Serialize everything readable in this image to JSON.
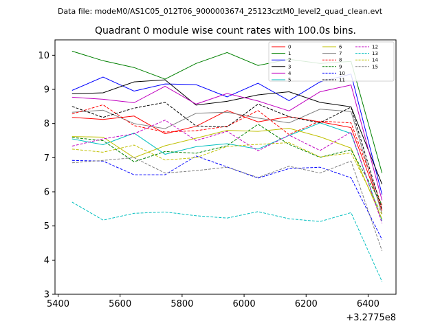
{
  "chart_data": {
    "type": "line",
    "suptitle": "Data file: modeM0/AS1C05_012T06_9000003674_25123cztM0_level2_quad_clean.evt",
    "title": "Quadrant 0 module wise count rates with 100.0s bins.",
    "xlabel": "",
    "ylabel": "",
    "x_offset_label": "+3.2775e8",
    "xlim": [
      5390,
      6490
    ],
    "ylim": [
      3.0,
      10.45
    ],
    "xticks": [
      5400,
      5600,
      5800,
      6000,
      6200,
      6400
    ],
    "yticks": [
      3,
      4,
      5,
      6,
      7,
      8,
      9,
      10
    ],
    "grid": false,
    "legend_position": "top-right",
    "x": [
      5445,
      5545,
      5645,
      5745,
      5845,
      5945,
      6045,
      6145,
      6245,
      6345,
      6445
    ],
    "series": [
      {
        "name": "0",
        "color": "#ff0000",
        "dash": "solid",
        "values": [
          8.18,
          8.12,
          8.22,
          7.7,
          7.92,
          8.38,
          8.05,
          8.2,
          8.05,
          7.88,
          5.45
        ]
      },
      {
        "name": "1",
        "color": "#008000",
        "dash": "solid",
        "values": [
          10.12,
          9.84,
          9.64,
          9.3,
          9.76,
          10.08,
          9.7,
          9.88,
          9.76,
          9.82,
          6.55
        ]
      },
      {
        "name": "2",
        "color": "#0000ff",
        "dash": "solid",
        "values": [
          8.97,
          9.36,
          8.95,
          9.16,
          9.14,
          8.78,
          9.18,
          8.67,
          9.22,
          9.45,
          5.92
        ]
      },
      {
        "name": "3",
        "color": "#000000",
        "dash": "solid",
        "values": [
          8.87,
          8.9,
          9.22,
          9.28,
          8.54,
          8.65,
          8.84,
          8.93,
          8.62,
          8.49,
          6.22
        ]
      },
      {
        "name": "4",
        "color": "#c000c0",
        "dash": "solid",
        "values": [
          8.77,
          8.71,
          8.61,
          9.09,
          8.57,
          8.88,
          8.66,
          8.37,
          8.93,
          9.13,
          5.75
        ]
      },
      {
        "name": "5",
        "color": "#00bfbf",
        "dash": "solid",
        "values": [
          7.55,
          7.38,
          7.72,
          7.1,
          7.32,
          7.41,
          7.25,
          7.65,
          8.02,
          7.71,
          5.15
        ]
      },
      {
        "name": "6",
        "color": "#bfbf00",
        "dash": "solid",
        "values": [
          7.62,
          7.6,
          7.0,
          7.35,
          7.57,
          7.8,
          7.77,
          7.86,
          7.61,
          7.28,
          5.2
        ]
      },
      {
        "name": "7",
        "color": "#808080",
        "dash": "solid",
        "values": [
          8.33,
          8.39,
          8.0,
          7.85,
          8.3,
          8.33,
          8.16,
          8.02,
          8.42,
          8.35,
          5.35
        ]
      },
      {
        "name": "8",
        "color": "#ff0000",
        "dash": "dashed",
        "values": [
          8.28,
          8.55,
          7.94,
          7.75,
          7.79,
          7.92,
          8.38,
          7.68,
          8.07,
          8.02,
          5.58
        ]
      },
      {
        "name": "9",
        "color": "#008000",
        "dash": "dashed",
        "values": [
          7.59,
          7.5,
          6.88,
          7.18,
          7.13,
          7.35,
          7.98,
          7.39,
          7.01,
          7.23,
          5.62
        ]
      },
      {
        "name": "10",
        "color": "#0000ff",
        "dash": "dashed",
        "values": [
          6.92,
          6.9,
          6.5,
          6.5,
          7.05,
          6.73,
          6.4,
          6.68,
          6.72,
          6.41,
          4.6
        ]
      },
      {
        "name": "11",
        "color": "#000000",
        "dash": "dashed",
        "values": [
          8.5,
          8.18,
          8.45,
          8.62,
          7.93,
          7.9,
          8.57,
          8.2,
          8.02,
          8.48,
          5.48
        ]
      },
      {
        "name": "12",
        "color": "#c000c0",
        "dash": "dashed",
        "values": [
          7.34,
          7.55,
          7.7,
          8.1,
          7.5,
          7.77,
          7.2,
          7.66,
          7.21,
          7.75,
          5.08
        ]
      },
      {
        "name": "13",
        "color": "#00bfbf",
        "dash": "dashed",
        "values": [
          5.7,
          5.17,
          5.37,
          5.41,
          5.3,
          5.23,
          5.42,
          5.21,
          5.13,
          5.39,
          3.37
        ]
      },
      {
        "name": "14",
        "color": "#bfbf00",
        "dash": "dashed",
        "values": [
          7.25,
          7.16,
          7.37,
          6.93,
          7.0,
          7.33,
          7.39,
          7.44,
          7.02,
          7.14,
          5.33
        ]
      },
      {
        "name": "15",
        "color": "#808080",
        "dash": "dashed",
        "values": [
          6.85,
          6.92,
          7.0,
          6.55,
          6.62,
          6.72,
          6.42,
          6.75,
          6.55,
          6.9,
          4.27
        ]
      }
    ]
  }
}
